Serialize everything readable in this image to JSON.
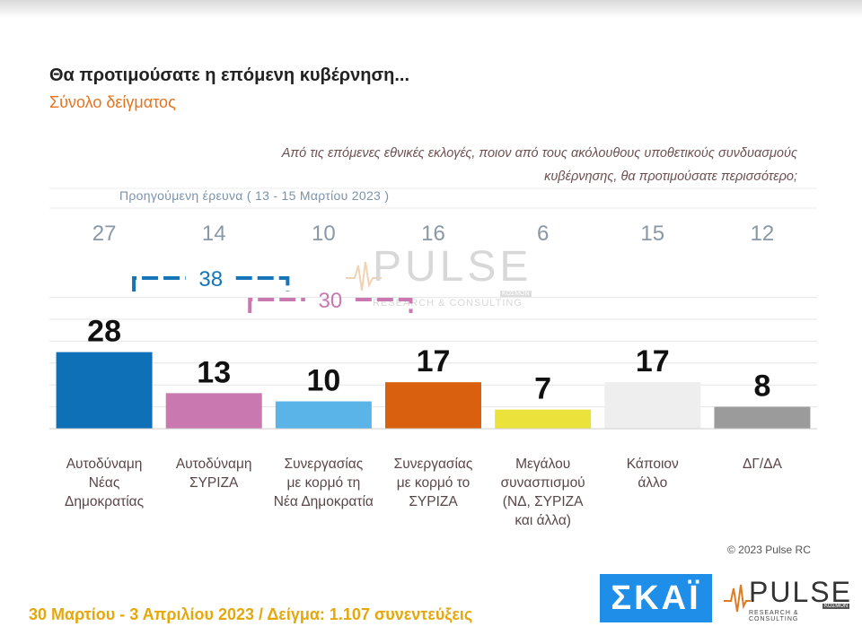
{
  "header": {
    "title": "Θα προτιμούσατε η επόμενη κυβέρνηση...",
    "subtitle": "Σύνολο δείγματος",
    "question_line1": "Από τις επόμενες εθνικές εκλογές, ποιον από τους ακόλουθους υποθετικούς συνδυασμούς",
    "question_line2": "κυβέρνησης, θα προτιμούσατε περισσότερο;",
    "previous_survey_label": "Προηγούμενη έρευνα  ( 13 - 15 Μαρτίου  2023 )"
  },
  "chart_data": {
    "type": "bar",
    "categories": [
      [
        "Αυτοδύναμη",
        "Νέας",
        "Δημοκρατίας"
      ],
      [
        "Αυτοδύναμη",
        "ΣΥΡΙΖΑ"
      ],
      [
        "Συνεργασίας",
        "με κορμό τη",
        "Νέα Δημοκρατία"
      ],
      [
        "Συνεργασίας",
        "με κορμό το",
        "ΣΥΡΙΖΑ"
      ],
      [
        "Μεγάλου",
        "συνασπισμού",
        "(ΝΔ, ΣΥΡΙΖΑ",
        "και άλλα)"
      ],
      [
        "Κάποιον",
        "άλλο"
      ],
      [
        "ΔΓ/ΔΑ"
      ]
    ],
    "values": [
      28,
      13,
      10,
      17,
      7,
      17,
      8
    ],
    "previous_values": [
      27,
      14,
      10,
      16,
      6,
      15,
      12
    ],
    "colors": [
      "#0e70b6",
      "#c979b0",
      "#5ab4e8",
      "#d8600e",
      "#ece23c",
      "#eeeeee",
      "#9b9b9b"
    ],
    "brackets": [
      {
        "value": "38",
        "from_category": 0,
        "to_category": 2,
        "color": "#1575b8"
      },
      {
        "value": "30",
        "from_category": 1,
        "to_category": 3,
        "color": "#c979b0"
      }
    ],
    "ylim": [
      0,
      48
    ],
    "grid": true
  },
  "footer": {
    "copyright": "© 2023 Pulse RC",
    "fieldwork": "30 Μαρτίου - 3  Απριλίου  2023  /  Δείγμα:  1.107 συνεντεύξεις",
    "skai_logo": "ΣΚΑΪ",
    "pulse_logo": "PULSE",
    "pulse_tagline": "RESEARCH & CONSULTING",
    "pulse_sub": "ΚΟΣΜΟΝ"
  },
  "watermark": {
    "word": "PULSE",
    "tagline": "RESEARCH & CONSULTING",
    "sub": "ΚΟΣΜΟΝ"
  }
}
